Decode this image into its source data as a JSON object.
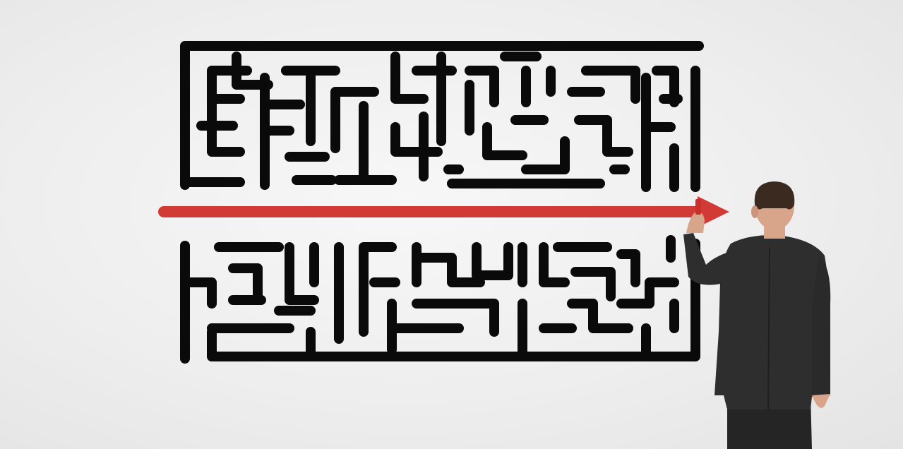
{
  "scene": {
    "wall_color": "#efefef",
    "maze_color": "#0a0a0a",
    "arrow_color": "#d23a36",
    "suit_color": "#2b2b2b",
    "hair_color": "#3a2a20",
    "skin_color": "#d9a58a"
  }
}
